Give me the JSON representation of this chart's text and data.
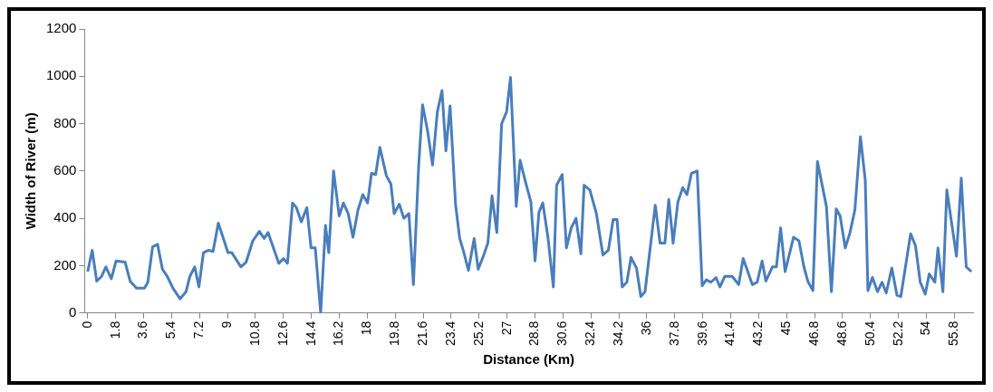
{
  "chart_data": {
    "type": "line",
    "xlabel": "Distance (Km)",
    "ylabel": "Width of River (m)",
    "x": [
      0,
      0.29,
      0.58,
      0.9,
      1.17,
      1.52,
      1.83,
      2.41,
      2.73,
      3.14,
      3.66,
      3.87,
      4.18,
      4.5,
      4.81,
      5.12,
      5.49,
      5.95,
      6.33,
      6.58,
      6.89,
      7.16,
      7.45,
      7.78,
      8.07,
      8.41,
      8.66,
      9.03,
      9.28,
      9.86,
      10.2,
      10.63,
      11.05,
      11.36,
      11.61,
      12.3,
      12.61,
      12.86,
      13.19,
      13.44,
      13.75,
      14.11,
      14.38,
      14.65,
      15,
      15.31,
      15.52,
      15.83,
      16.19,
      16.46,
      16.77,
      17.08,
      17.4,
      17.71,
      18.02,
      18.27,
      18.54,
      18.81,
      19.23,
      19.52,
      19.73,
      20.06,
      20.35,
      20.68,
      20.97,
      21.31,
      21.56,
      21.88,
      22.2,
      22.51,
      22.81,
      23.06,
      23.33,
      23.68,
      23.95,
      24.22,
      24.51,
      24.88,
      25.14,
      25.47,
      25.76,
      26.03,
      26.34,
      26.65,
      26.97,
      27.22,
      27.59,
      27.84,
      28.18,
      28.53,
      28.8,
      29.05,
      29.3,
      29.63,
      29.98,
      30.19,
      30.55,
      30.82,
      31.13,
      31.44,
      31.75,
      31.96,
      32.33,
      32.75,
      33.17,
      33.52,
      33.83,
      34.08,
      34.41,
      34.71,
      34.98,
      35.33,
      35.61,
      35.88,
      36.54,
      36.85,
      37.16,
      37.41,
      37.69,
      38,
      38.31,
      38.58,
      38.87,
      39.24,
      39.56,
      39.83,
      40.12,
      40.45,
      40.7,
      41.02,
      41.49,
      41.91,
      42.2,
      42.79,
      43.1,
      43.42,
      43.66,
      44.08,
      44.34,
      44.61,
      44.9,
      45.44,
      45.79,
      46.11,
      46.36,
      46.69,
      46.98,
      47.56,
      47.88,
      48.19,
      48.44,
      48.77,
      49.06,
      49.39,
      49.75,
      50.06,
      50.23,
      50.52,
      50.85,
      51.14,
      51.41,
      51.77,
      52.1,
      52.35,
      52.98,
      53.29,
      53.6,
      53.92,
      54.18,
      54.54,
      54.74,
      55.06,
      55.31,
      55.93,
      56.24,
      56.56,
      56.89
    ],
    "series": [
      {
        "color": "#4a7ebb",
        "values": [
          175,
          265,
          135,
          155,
          195,
          145,
          220,
          215,
          135,
          105,
          105,
          130,
          280,
          290,
          185,
          155,
          105,
          60,
          90,
          155,
          195,
          110,
          255,
          265,
          260,
          380,
          330,
          255,
          255,
          195,
          215,
          305,
          345,
          315,
          340,
          210,
          230,
          210,
          465,
          445,
          385,
          445,
          275,
          275,
          0,
          370,
          255,
          600,
          410,
          465,
          420,
          320,
          435,
          500,
          465,
          590,
          585,
          700,
          580,
          545,
          420,
          460,
          400,
          420,
          120,
          625,
          880,
          770,
          625,
          850,
          940,
          685,
          875,
          460,
          315,
          255,
          180,
          315,
          185,
          240,
          295,
          495,
          340,
          800,
          850,
          995,
          450,
          645,
          555,
          470,
          220,
          425,
          465,
          320,
          110,
          540,
          585,
          275,
          360,
          400,
          250,
          540,
          520,
          420,
          245,
          265,
          395,
          395,
          110,
          130,
          235,
          190,
          70,
          90,
          455,
          295,
          295,
          480,
          295,
          470,
          530,
          500,
          590,
          600,
          115,
          140,
          130,
          150,
          110,
          155,
          155,
          120,
          230,
          120,
          130,
          220,
          135,
          195,
          195,
          360,
          175,
          320,
          305,
          195,
          135,
          95,
          640,
          450,
          90,
          440,
          410,
          275,
          335,
          435,
          745,
          560,
          95,
          150,
          90,
          130,
          85,
          190,
          75,
          70,
          335,
          285,
          130,
          80,
          165,
          130,
          275,
          90,
          520,
          240,
          570,
          195,
          175
        ]
      }
    ],
    "xlim": [
      -0.2,
      57
    ],
    "xticks": [
      0,
      1.8,
      3.6,
      5.4,
      7.2,
      9,
      10.8,
      12.6,
      14.4,
      16.2,
      18,
      19.8,
      21.6,
      23.4,
      25.2,
      27,
      28.8,
      30.6,
      32.4,
      34.2,
      36,
      37.8,
      39.6,
      41.4,
      43.2,
      45,
      46.8,
      48.6,
      50.4,
      52.2,
      54,
      55.8
    ],
    "ylim": [
      0,
      1200
    ],
    "yticks": [
      0,
      200,
      400,
      600,
      800,
      1000,
      1200
    ],
    "grid": false,
    "legend": false,
    "marker": "none",
    "line_style": "solid"
  }
}
